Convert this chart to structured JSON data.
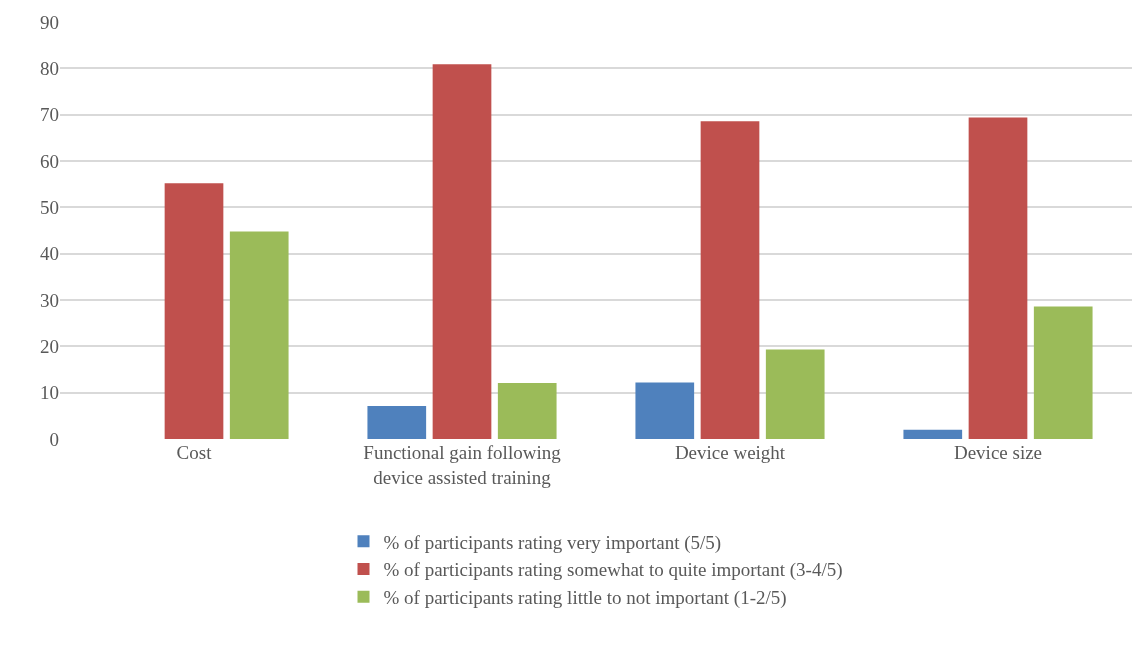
{
  "chart_data": {
    "type": "bar",
    "categories": [
      "Cost",
      "Functional gain following device assisted training",
      "Device weight",
      "Device size"
    ],
    "series": [
      {
        "name": "% of participants rating very important (5/5)",
        "color": "#4f81bd",
        "values": [
          0,
          7.1,
          12.2,
          2.0
        ]
      },
      {
        "name": "% of participants rating somewhat to quite important (3-4/5)",
        "color": "#c0504d",
        "values": [
          55.2,
          80.9,
          68.6,
          69.4
        ]
      },
      {
        "name": "% of participants rating little to not important (1-2/5)",
        "color": "#9bbb59",
        "values": [
          44.8,
          12.1,
          19.3,
          28.6
        ]
      }
    ],
    "ylim": [
      0,
      90
    ],
    "yticks": [
      0,
      10,
      20,
      30,
      40,
      50,
      60,
      70,
      80,
      90
    ],
    "grid": "y",
    "legend": "bottom"
  }
}
